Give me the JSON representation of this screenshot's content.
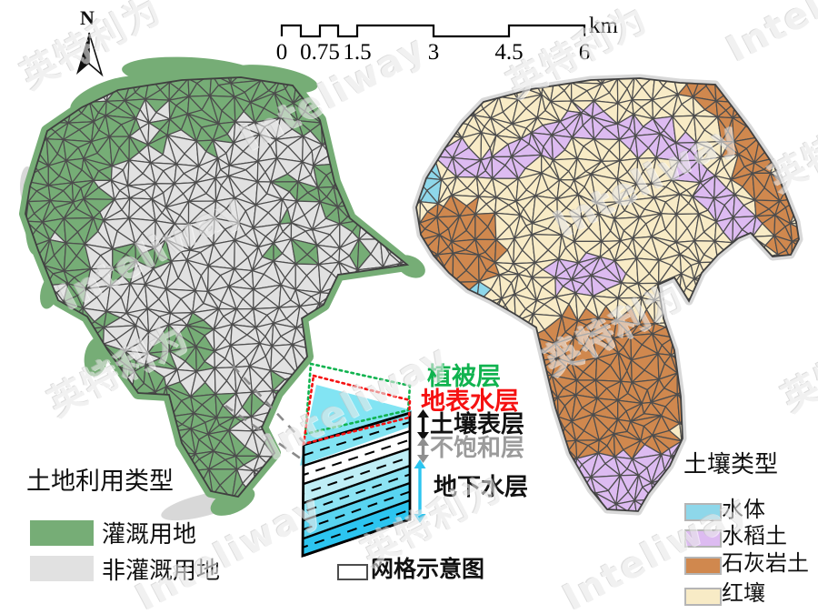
{
  "watermark": {
    "latin": "Inteliway",
    "cjk": "英特利为"
  },
  "north_arrow": {
    "label": "N"
  },
  "scale_bar": {
    "ticks": [
      "0",
      "0.75",
      "1.5",
      "3",
      "4.5",
      "6"
    ],
    "unit": "km"
  },
  "left_map": {
    "legend_title": "土地利用类型",
    "legend": [
      {
        "label": "灌溉用地",
        "color": "#76ad76"
      },
      {
        "label": "非灌溉用地",
        "color": "#e1e1e1"
      }
    ]
  },
  "right_map": {
    "legend_title": "土壤类型",
    "legend": [
      {
        "label": "水体",
        "color": "#8ed7ea"
      },
      {
        "label": "水稻土",
        "color": "#ddbbf1"
      },
      {
        "label": "石灰岩土",
        "color": "#d0884e"
      },
      {
        "label": "红壤",
        "color": "#f8ebc6"
      }
    ]
  },
  "schematic": {
    "layers": [
      {
        "label": "植被层",
        "color": "#10b34f"
      },
      {
        "label": "地表水层",
        "color": "#f51111"
      },
      {
        "label": "土壤表层",
        "color": "#111111"
      },
      {
        "label": "不饱和层",
        "color": "#9b9b9b"
      },
      {
        "label": "地下水层",
        "color": "#111111",
        "arrow_color": "#2cc5f0"
      }
    ],
    "grid_label": "网格示意图",
    "band_fills": [
      "#ffffff",
      "#ffffff",
      "#bfeef6",
      "#8ce3f3",
      "#58d4f1",
      "#2cc5f0"
    ],
    "surface_plane_color": "#63ddf0"
  },
  "palette": {
    "mesh_stroke": "#4d4d4d",
    "hull_stroke": "#3f3f3f",
    "fringe_gray": "#d8d8d8",
    "leader_gray": "#8a8a8a"
  }
}
